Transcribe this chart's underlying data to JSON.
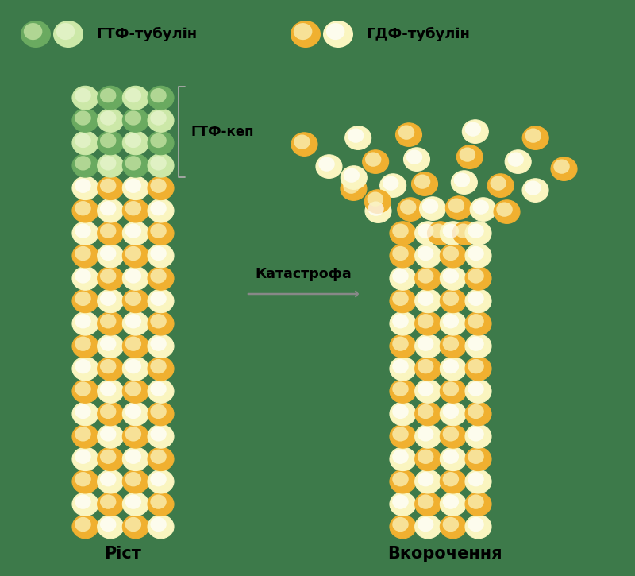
{
  "bg_color": "#3d7a4a",
  "gtf_label": "ГТФ-тубулін",
  "gdf_label": "ГДФ-тубулін",
  "gtf_cap_label": "ГТФ-кеп",
  "arrow_label": "Катастрофа",
  "label_rist": "Ріст",
  "label_vkorochennya": "Вкорочення",
  "col_gdp_orange": "#f0b030",
  "col_gdp_light": "#faf5c0",
  "col_gtp_dark": "#6aaa60",
  "col_gtp_light": "#cce8a8",
  "col_outline": "#c8a060"
}
